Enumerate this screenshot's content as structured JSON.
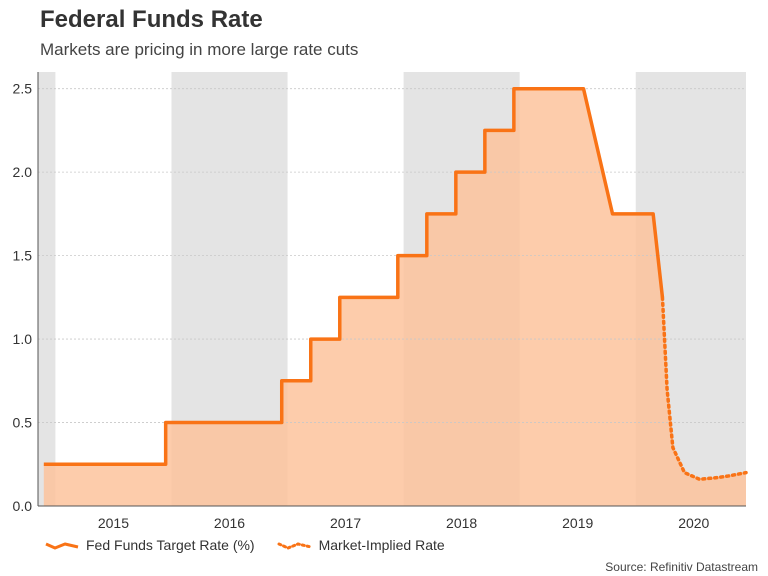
{
  "title": "Federal Funds Rate",
  "subtitle": "Markets are pricing in more large rate cuts",
  "source": "Source: Refinitiv Datastream",
  "colors": {
    "line": "#f97316",
    "area": "#fdc39c",
    "shade": "#e4e4e4",
    "grid": "#c8c8c8"
  },
  "chart_data": {
    "type": "area",
    "xlim": [
      2014.85,
      2020.95
    ],
    "ylim": [
      0,
      2.6
    ],
    "y_ticks": [
      "0.0",
      "0.5",
      "1.0",
      "1.5",
      "2.0",
      "2.5"
    ],
    "x_ticks": [
      "2015",
      "2016",
      "2017",
      "2018",
      "2019",
      "2020"
    ],
    "shaded_years": [
      [
        2014.85,
        2015.0
      ],
      [
        2016.0,
        2017.0
      ],
      [
        2018.0,
        2019.0
      ],
      [
        2020.0,
        2020.95
      ]
    ],
    "grid": "horizontal",
    "legend": "bottom-left",
    "series": [
      {
        "name": "Fed Funds Target Rate (%)",
        "style": "solid",
        "x": [
          2014.9,
          2015.95,
          2015.95,
          2016.95,
          2016.95,
          2017.2,
          2017.2,
          2017.45,
          2017.45,
          2017.95,
          2017.95,
          2018.2,
          2018.2,
          2018.45,
          2018.45,
          2018.7,
          2018.7,
          2018.95,
          2018.95,
          2019.55,
          2019.8,
          2020.15,
          2020.23
        ],
        "y": [
          0.25,
          0.25,
          0.5,
          0.5,
          0.75,
          0.75,
          1.0,
          1.0,
          1.25,
          1.25,
          1.5,
          1.5,
          1.75,
          1.75,
          2.0,
          2.0,
          2.25,
          2.25,
          2.5,
          2.5,
          1.75,
          1.75,
          1.25
        ]
      },
      {
        "name": "Market-Implied Rate",
        "style": "dotted",
        "x": [
          2020.23,
          2020.27,
          2020.32,
          2020.42,
          2020.55,
          2020.7,
          2020.8,
          2020.95
        ],
        "y": [
          1.25,
          0.7,
          0.35,
          0.2,
          0.16,
          0.17,
          0.18,
          0.2
        ]
      }
    ]
  },
  "legend": {
    "items": [
      {
        "label": "Fed Funds Target Rate (%)"
      },
      {
        "label": "Market-Implied Rate"
      }
    ]
  }
}
